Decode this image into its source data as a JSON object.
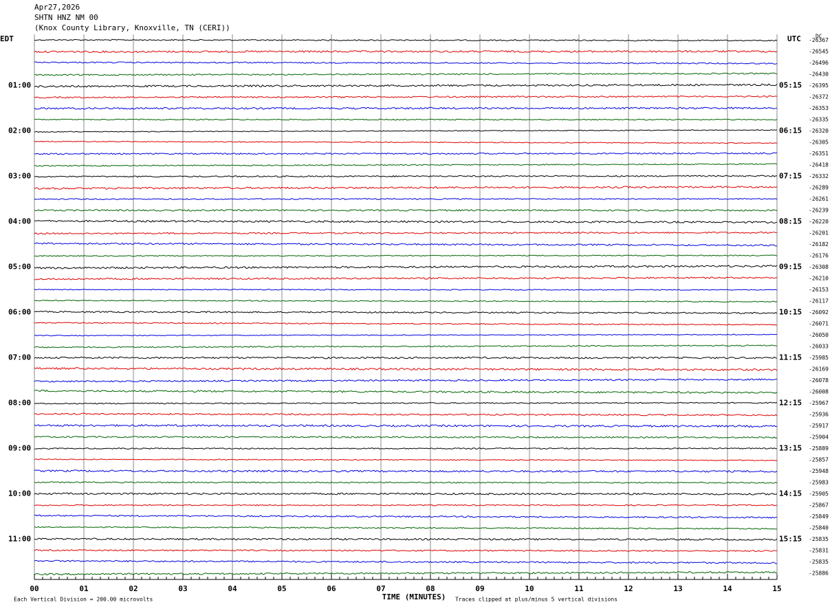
{
  "chart_data": {
    "type": "helicorder",
    "title": [
      "Apr27,2026",
      "SHTN HNZ NM 00",
      "(Knox County Library, Knoxville, TN (CERI))"
    ],
    "left_header": "EDT",
    "right_header": "UTC",
    "dc_header": "DC",
    "xlabel": "TIME (MINUTES)",
    "left_note": "Each Vertical Division =  200.00 microvolts",
    "right_note": "Traces clipped at plus/minus 5 vertical divisions",
    "xlim": [
      0,
      15
    ],
    "xticks": [
      {
        "value": 0,
        "label": "00"
      },
      {
        "value": 1,
        "label": "01"
      },
      {
        "value": 2,
        "label": "02"
      },
      {
        "value": 3,
        "label": "03"
      },
      {
        "value": 4,
        "label": "04"
      },
      {
        "value": 5,
        "label": "05"
      },
      {
        "value": 6,
        "label": "06"
      },
      {
        "value": 7,
        "label": "07"
      },
      {
        "value": 8,
        "label": "08"
      },
      {
        "value": 9,
        "label": "09"
      },
      {
        "value": 10,
        "label": "10"
      },
      {
        "value": 11,
        "label": "11"
      },
      {
        "value": 12,
        "label": "12"
      },
      {
        "value": 13,
        "label": "13"
      },
      {
        "value": 14,
        "label": "14"
      },
      {
        "value": 15,
        "label": "15"
      }
    ],
    "grid": true,
    "trace_colors": [
      "#000000",
      "#e00000",
      "#0000e0",
      "#006400"
    ],
    "left_labels": [
      null,
      null,
      null,
      null,
      "01:00",
      null,
      null,
      null,
      "02:00",
      null,
      null,
      null,
      "03:00",
      null,
      null,
      null,
      "04:00",
      null,
      null,
      null,
      "05:00",
      null,
      null,
      null,
      "06:00",
      null,
      null,
      null,
      "07:00",
      null,
      null,
      null,
      "08:00",
      null,
      null,
      null,
      "09:00",
      null,
      null,
      null,
      "10:00",
      null,
      null,
      null,
      "11:00",
      null,
      null,
      null
    ],
    "right_labels": [
      null,
      null,
      null,
      null,
      "05:15",
      null,
      null,
      null,
      "06:15",
      null,
      null,
      null,
      "07:15",
      null,
      null,
      null,
      "08:15",
      null,
      null,
      null,
      "09:15",
      null,
      null,
      null,
      "10:15",
      null,
      null,
      null,
      "11:15",
      null,
      null,
      null,
      "12:15",
      null,
      null,
      null,
      "13:15",
      null,
      null,
      null,
      "14:15",
      null,
      null,
      null,
      "15:15",
      null,
      null,
      null
    ],
    "dc_values": [
      -26367,
      -26545,
      -26496,
      -26430,
      -26395,
      -26372,
      -26353,
      -26335,
      -26320,
      -26305,
      -26351,
      -26418,
      -26332,
      -26289,
      -26261,
      -26239,
      -26220,
      -26201,
      -26182,
      -26176,
      -26308,
      -26210,
      -26153,
      -26117,
      -26092,
      -26071,
      -26050,
      -26033,
      -25985,
      -26169,
      -26078,
      -26008,
      -25967,
      -25936,
      -25917,
      -25904,
      -25889,
      -25857,
      -25948,
      -25983,
      -25905,
      -25867,
      -25849,
      -25840,
      -25835,
      -25831,
      -25835,
      -25886
    ]
  }
}
